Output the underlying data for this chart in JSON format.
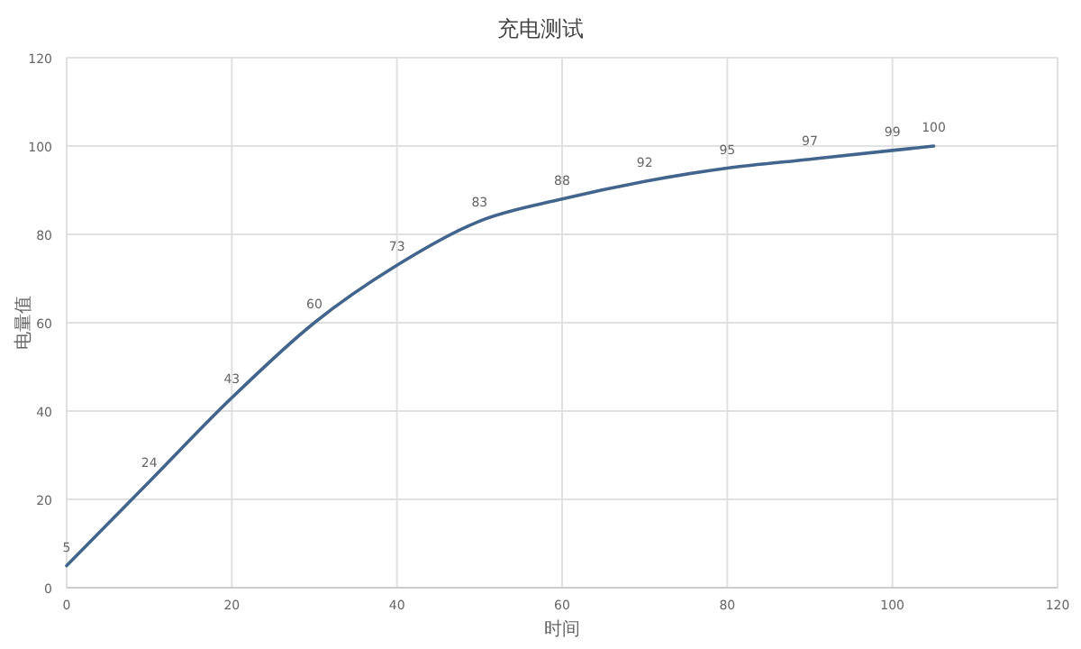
{
  "chart_data": {
    "type": "line",
    "title": "充电测试",
    "xlabel": "时间",
    "ylabel": "电量值",
    "x": [
      0,
      10,
      20,
      30,
      40,
      50,
      60,
      70,
      80,
      90,
      100,
      105
    ],
    "series": [
      {
        "color": "#41658c",
        "values": [
          5,
          24,
          43,
          60,
          73,
          83,
          88,
          92,
          95,
          97,
          99,
          100
        ]
      }
    ],
    "xlim": [
      0,
      120
    ],
    "xticks": [
      0,
      20,
      40,
      60,
      80,
      100,
      120
    ],
    "ylim": [
      0,
      120
    ],
    "yticks": [
      0,
      20,
      40,
      60,
      80,
      100,
      120
    ],
    "grid": true,
    "data_labels": true,
    "marker": "none",
    "line_style": "solid"
  }
}
